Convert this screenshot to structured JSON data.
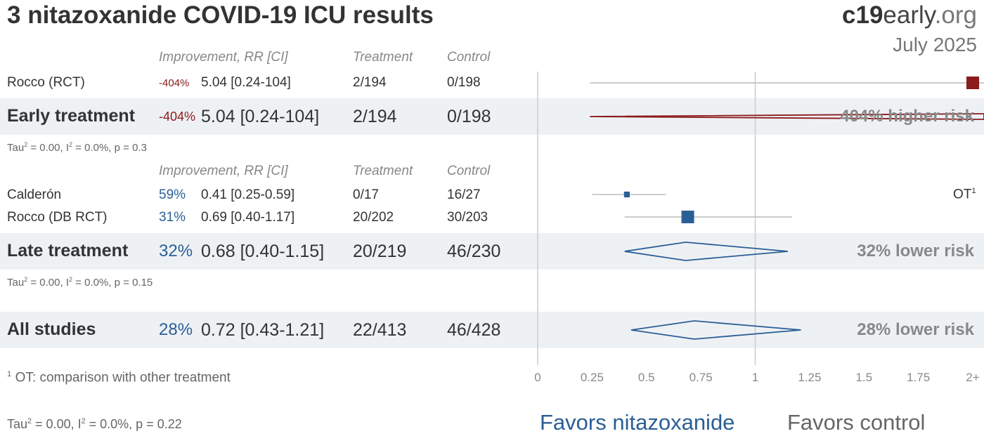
{
  "title": "3 nitazoxanide COVID-19 ICU results",
  "brand": {
    "bold": "c19",
    "main": "early",
    "suffix": ".org"
  },
  "date": "July 2025",
  "headers": {
    "improvement": "Improvement, RR [CI]",
    "treatment": "Treatment",
    "control": "Control"
  },
  "groups": {
    "early": {
      "studies": [
        {
          "name": "Rocco (RCT)",
          "improvement": "-404%",
          "rr_ci": "5.04 [0.24-104]",
          "treatment": "2/194",
          "control": "0/198"
        }
      ],
      "summary": {
        "name": "Early treatment",
        "improvement": "-404%",
        "rr_ci": "5.04 [0.24-104]",
        "treatment": "2/194",
        "control": "0/198",
        "risk": "404% higher risk"
      },
      "stats": {
        "tau_prefix": "Tau",
        "tau_rest": " = 0.00, I",
        "i_rest": " = 0.0%, p = 0.3"
      }
    },
    "late": {
      "studies": [
        {
          "name": "Calderón",
          "improvement": "59%",
          "rr_ci": "0.41 [0.25-0.59]",
          "treatment": "0/17",
          "control": "16/27",
          "note": "OT"
        },
        {
          "name": "Rocco (DB RCT)",
          "improvement": "31%",
          "rr_ci": "0.69 [0.40-1.17]",
          "treatment": "20/202",
          "control": "30/203"
        }
      ],
      "summary": {
        "name": "Late treatment",
        "improvement": "32%",
        "rr_ci": "0.68 [0.40-1.15]",
        "treatment": "20/219",
        "control": "46/230",
        "risk": "32% lower risk"
      },
      "stats": {
        "tau_prefix": "Tau",
        "tau_rest": " = 0.00, I",
        "i_rest": " = 0.0%, p = 0.15"
      }
    },
    "all": {
      "summary": {
        "name": "All studies",
        "improvement": "28%",
        "rr_ci": "0.72 [0.43-1.21]",
        "treatment": "22/413",
        "control": "46/428",
        "risk": "28% lower risk"
      },
      "stats": {
        "tau_prefix": "Tau",
        "tau_rest": " = 0.00, I",
        "i_rest": " = 0.0%, p = 0.22"
      }
    }
  },
  "footnote": {
    "num": "1",
    "text": " OT: comparison with other treatment"
  },
  "note_sup": "1",
  "sup2": "2",
  "favors": {
    "left": "Favors nitazoxanide",
    "right": "Favors control"
  },
  "colors": {
    "harm": "#8b1a1a",
    "benefit": "#2a5f96",
    "ci": "#bbbbbb",
    "band": "#eef1f4"
  },
  "chart_data": {
    "type": "forest",
    "xlim": [
      0,
      2
    ],
    "ticks": [
      "0",
      "0.25",
      "0.5",
      "0.75",
      "1",
      "1.25",
      "1.5",
      "1.75",
      "2+"
    ],
    "tick_values": [
      0,
      0.25,
      0.5,
      0.75,
      1,
      1.25,
      1.5,
      1.75,
      2
    ],
    "studies": [
      {
        "name": "Rocco (RCT)",
        "rr": 5.04,
        "lo": 0.24,
        "hi": 104,
        "weight": 1.0,
        "group": "early"
      },
      {
        "name": "Calderón",
        "rr": 0.41,
        "lo": 0.25,
        "hi": 0.59,
        "weight": 0.3,
        "group": "late"
      },
      {
        "name": "Rocco (DB RCT)",
        "rr": 0.69,
        "lo": 0.4,
        "hi": 1.17,
        "weight": 1.0,
        "group": "late"
      }
    ],
    "summaries": [
      {
        "name": "Early treatment",
        "rr": 5.04,
        "lo": 0.24,
        "hi": 104
      },
      {
        "name": "Late treatment",
        "rr": 0.68,
        "lo": 0.4,
        "hi": 1.15
      },
      {
        "name": "All studies",
        "rr": 0.72,
        "lo": 0.43,
        "hi": 1.21
      }
    ]
  }
}
